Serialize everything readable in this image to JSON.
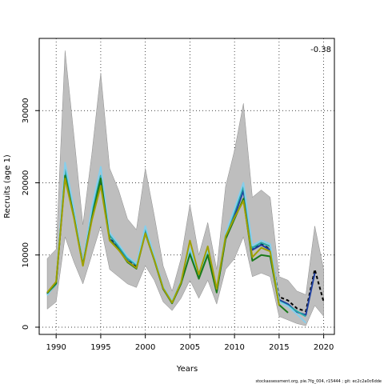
{
  "chart_data": {
    "type": "line",
    "xlabel": "Years",
    "ylabel": "Recruits (age 1)",
    "annotation": "-0.38",
    "footnote": "stockassessment.org, pie.7fg_004, r15444 ; git: ec2c2a0c6dde",
    "xlim": [
      1988.1,
      2021.2
    ],
    "ylim": [
      -1000,
      40000
    ],
    "x_ticks": [
      1990,
      1995,
      2000,
      2005,
      2010,
      2015,
      2020
    ],
    "y_ticks": [
      0,
      10000,
      20000,
      30000
    ],
    "grid": true,
    "confidence_band": {
      "color": "#bebebe",
      "x": [
        1989,
        1990,
        1991,
        1992,
        1993,
        1994,
        1995,
        1996,
        1997,
        1998,
        1999,
        2000,
        2001,
        2002,
        2003,
        2004,
        2005,
        2006,
        2007,
        2008,
        2009,
        2010,
        2011,
        2012,
        2013,
        2014,
        2015,
        2016,
        2017,
        2018,
        2019,
        2020
      ],
      "upper": [
        9500,
        10800,
        38300,
        26500,
        14200,
        24000,
        35200,
        22000,
        19000,
        15000,
        13500,
        22000,
        15500,
        8500,
        5000,
        9500,
        17000,
        10000,
        14500,
        8000,
        19500,
        24500,
        31000,
        18000,
        19000,
        18000,
        7000,
        6500,
        5000,
        4500,
        14000,
        8000
      ],
      "lower": [
        2500,
        3500,
        12500,
        9000,
        6000,
        10000,
        14000,
        8000,
        7000,
        6000,
        5500,
        8500,
        6500,
        3500,
        2300,
        4000,
        6500,
        4000,
        6500,
        3200,
        8000,
        9500,
        12500,
        7000,
        7500,
        7000,
        1500,
        1000,
        500,
        200,
        3000,
        1500
      ]
    },
    "series": [
      {
        "color": "#000000",
        "dash": "4,3",
        "x": [
          1989,
          1990,
          1991,
          1992,
          1993,
          1994,
          1995,
          1996,
          1997,
          1998,
          1999,
          2000,
          2001,
          2002,
          2003,
          2004,
          2005,
          2006,
          2007,
          2008,
          2009,
          2010,
          2011,
          2012,
          2013,
          2014,
          2015,
          2016,
          2017,
          2018,
          2019,
          2020
        ],
        "values": [
          4700,
          6100,
          21500,
          15800,
          9000,
          15500,
          20500,
          12300,
          11000,
          9300,
          8300,
          13300,
          9600,
          5400,
          3500,
          6200,
          10500,
          7000,
          10300,
          5000,
          12500,
          15500,
          19000,
          10800,
          11500,
          10800,
          4200,
          3700,
          2600,
          2200,
          8000,
          3500
        ]
      },
      {
        "color": "#1f3f9f",
        "x": [
          1989,
          1990,
          1991,
          1992,
          1993,
          1994,
          1995,
          1996,
          1997,
          1998,
          1999,
          2000,
          2001,
          2002,
          2003,
          2004,
          2005,
          2006,
          2007,
          2008,
          2009,
          2010,
          2011,
          2012,
          2013,
          2014,
          2015,
          2016,
          2017,
          2018,
          2019
        ],
        "values": [
          4600,
          6000,
          21300,
          15600,
          8900,
          15300,
          20300,
          12200,
          10900,
          9200,
          8200,
          13200,
          9500,
          5300,
          3400,
          6100,
          10400,
          6900,
          10200,
          4900,
          12400,
          15400,
          18900,
          10700,
          11400,
          10700,
          3800,
          3200,
          2100,
          1700,
          7500
        ]
      },
      {
        "color": "#22a8a8",
        "x": [
          1989,
          1990,
          1991,
          1992,
          1993,
          1994,
          1995,
          1996,
          1997,
          1998,
          1999,
          2000,
          2001,
          2002,
          2003,
          2004,
          2005,
          2006,
          2007,
          2008,
          2009,
          2010,
          2011,
          2012,
          2013,
          2014,
          2015,
          2016,
          2017,
          2018
        ],
        "values": [
          4500,
          6000,
          22000,
          16000,
          8700,
          16000,
          21000,
          12700,
          11200,
          9500,
          8600,
          13600,
          9700,
          5500,
          3500,
          6300,
          10700,
          7200,
          10500,
          5100,
          12800,
          16000,
          19500,
          11000,
          11700,
          11200,
          3600,
          3000,
          2200,
          1500
        ]
      },
      {
        "color": "#87ceeb",
        "x": [
          1989,
          1990,
          1991,
          1992,
          1993,
          1994,
          1995,
          1996,
          1997,
          1998,
          1999,
          2000,
          2001,
          2002,
          2003,
          2004,
          2005,
          2006,
          2007,
          2008,
          2009,
          2010,
          2011,
          2012,
          2013,
          2014,
          2015,
          2016,
          2017,
          2018
        ],
        "values": [
          4400,
          6200,
          22800,
          16400,
          8900,
          16600,
          22200,
          13100,
          11500,
          9800,
          8800,
          14000,
          9900,
          5600,
          3600,
          6400,
          10900,
          7400,
          10700,
          5200,
          13000,
          16400,
          20000,
          11300,
          12000,
          11500,
          3500,
          2900,
          1800,
          600
        ]
      },
      {
        "color": "#1a7a1a",
        "x": [
          1989,
          1990,
          1991,
          1992,
          1993,
          1994,
          1995,
          1996,
          1997,
          1998,
          1999,
          2000,
          2001,
          2002,
          2003,
          2004,
          2005,
          2006,
          2007,
          2008,
          2009,
          2010,
          2011,
          2012,
          2013,
          2014,
          2015,
          2016
        ],
        "values": [
          4700,
          6100,
          21000,
          15300,
          8600,
          15100,
          20600,
          12100,
          10800,
          9000,
          8100,
          13000,
          9300,
          5300,
          3300,
          6000,
          10100,
          6700,
          10000,
          4800,
          12200,
          15000,
          17800,
          9200,
          10000,
          9800,
          3100,
          2000
        ]
      },
      {
        "color": "#a0a000",
        "x": [
          1989,
          1990,
          1991,
          1992,
          1993,
          1994,
          1995,
          1996,
          1997,
          1998,
          1999,
          2000,
          2001,
          2002,
          2003,
          2004,
          2005,
          2006,
          2007,
          2008,
          2009,
          2010,
          2011,
          2012,
          2013,
          2014,
          2015
        ],
        "values": [
          4800,
          6300,
          20600,
          15100,
          8500,
          14800,
          19600,
          12000,
          10700,
          9100,
          8200,
          13000,
          9400,
          5400,
          3400,
          6200,
          12000,
          7300,
          11200,
          5300,
          12600,
          15200,
          17500,
          9700,
          11000,
          10500,
          3000
        ]
      }
    ]
  }
}
